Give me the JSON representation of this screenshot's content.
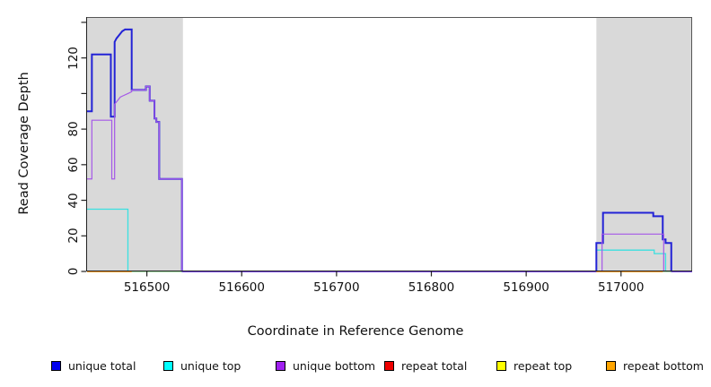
{
  "figure": {
    "x_axis_title": "Coordinate in Reference Genome",
    "y_axis_title": "Read Coverage Depth"
  },
  "colors": {
    "masked_region_gray": "#d9d9d9",
    "frame": "#555555",
    "axis": "#222222"
  },
  "legend": {
    "items": [
      {
        "label": "unique total",
        "color": "#0000ee"
      },
      {
        "label": "unique top",
        "color": "#00ffff"
      },
      {
        "label": "unique bottom",
        "color": "#a020f0"
      },
      {
        "label": "repeat total",
        "color": "#ee0000"
      },
      {
        "label": "repeat top",
        "color": "#ffff00"
      },
      {
        "label": "repeat bottom",
        "color": "#ffa500"
      }
    ]
  },
  "chart_data": {
    "type": "line",
    "title": "",
    "xlabel": "Coordinate in Reference Genome",
    "ylabel": "Read Coverage Depth",
    "xlim": [
      516436,
      517075
    ],
    "ylim": [
      0,
      143
    ],
    "grid": false,
    "legend_position": "bottom",
    "x_ticks": [
      516500,
      516600,
      516700,
      516800,
      516900,
      517000
    ],
    "y_ticks": [
      0,
      20,
      40,
      60,
      80,
      100,
      120,
      140
    ],
    "y_tick_labels": [
      "0",
      "20",
      "40",
      "60",
      "80",
      "",
      "120",
      ""
    ],
    "masked_bands": [
      {
        "x0": 516436,
        "x1": 516538
      },
      {
        "x0": 516974,
        "x1": 517075
      }
    ],
    "series": [
      {
        "name": "repeat total",
        "line_color": "#dd2222",
        "line_width": 1.2,
        "paths": [
          [
            [
              516437,
              0
            ],
            [
              516537,
              0
            ]
          ],
          [
            [
              516974,
              0
            ],
            [
              517053,
              0
            ]
          ]
        ]
      },
      {
        "name": "unique top",
        "line_color": "#3ae0e0",
        "line_width": 1.3,
        "paths": [
          [
            [
              516436,
              35
            ],
            [
              516480,
              35
            ],
            [
              516480,
              0
            ],
            [
              516974,
              0
            ],
            [
              516974,
              12
            ],
            [
              517035,
              12
            ],
            [
              517035,
              10
            ],
            [
              517047,
              10
            ],
            [
              517047,
              0
            ],
            [
              517075,
              0
            ]
          ]
        ]
      },
      {
        "name": "unique total",
        "line_color": "#2323d6",
        "line_width": 2,
        "paths": [
          [
            [
              516436,
              90
            ],
            [
              516442,
              90
            ],
            [
              516442,
              122
            ],
            [
              516462,
              122
            ],
            [
              516462,
              87
            ],
            [
              516466,
              87
            ],
            [
              516466,
              129
            ],
            [
              516468,
              131
            ],
            [
              516471,
              133
            ],
            [
              516474,
              135
            ],
            [
              516477,
              136
            ],
            [
              516484,
              136
            ],
            [
              516484,
              102
            ],
            [
              516499,
              102
            ],
            [
              516499,
              104
            ],
            [
              516503,
              104
            ],
            [
              516503,
              96
            ],
            [
              516508,
              96
            ],
            [
              516508,
              86
            ],
            [
              516510,
              86
            ],
            [
              516510,
              84
            ],
            [
              516513,
              84
            ],
            [
              516513,
              52
            ],
            [
              516537,
              52
            ],
            [
              516537,
              0
            ],
            [
              516974,
              0
            ],
            [
              516974,
              16
            ],
            [
              516981,
              16
            ],
            [
              516981,
              33
            ],
            [
              517034,
              33
            ],
            [
              517034,
              31
            ],
            [
              517044,
              31
            ],
            [
              517044,
              18
            ],
            [
              517047,
              18
            ],
            [
              517047,
              16
            ],
            [
              517053,
              16
            ],
            [
              517053,
              0
            ],
            [
              517075,
              0
            ]
          ]
        ]
      },
      {
        "name": "unique bottom",
        "line_color": "#a558e8",
        "line_width": 1.2,
        "paths": [
          [
            [
              516436,
              52
            ],
            [
              516442,
              52
            ],
            [
              516442,
              85
            ],
            [
              516463,
              85
            ],
            [
              516463,
              52
            ],
            [
              516466,
              52
            ],
            [
              516466,
              94
            ],
            [
              516469,
              96
            ],
            [
              516472,
              98
            ],
            [
              516476,
              99
            ],
            [
              516480,
              100
            ],
            [
              516484,
              101
            ],
            [
              516484,
              102
            ],
            [
              516499,
              102
            ],
            [
              516499,
              104
            ],
            [
              516503,
              104
            ],
            [
              516503,
              96
            ],
            [
              516508,
              96
            ],
            [
              516508,
              86
            ],
            [
              516510,
              86
            ],
            [
              516510,
              84
            ],
            [
              516513,
              84
            ],
            [
              516513,
              52
            ],
            [
              516537,
              52
            ],
            [
              516537,
              0
            ],
            [
              516980,
              0
            ],
            [
              516980,
              21
            ],
            [
              517045,
              21
            ],
            [
              517045,
              0
            ],
            [
              517075,
              0
            ]
          ]
        ]
      },
      {
        "name": "repeat top",
        "line_color": "#96dd96",
        "line_width": 1.4,
        "paths": [
          [
            [
              516484,
              0
            ],
            [
              516537,
              0
            ]
          ],
          [
            [
              517044,
              0
            ],
            [
              517053,
              0
            ]
          ]
        ]
      },
      {
        "name": "repeat bottom",
        "line_color": "#ff9914",
        "line_width": 1.8,
        "paths": [
          [
            [
              516437,
              0
            ],
            [
              516484,
              0
            ]
          ],
          [
            [
              516974,
              0
            ],
            [
              517044,
              0
            ]
          ]
        ]
      }
    ]
  }
}
